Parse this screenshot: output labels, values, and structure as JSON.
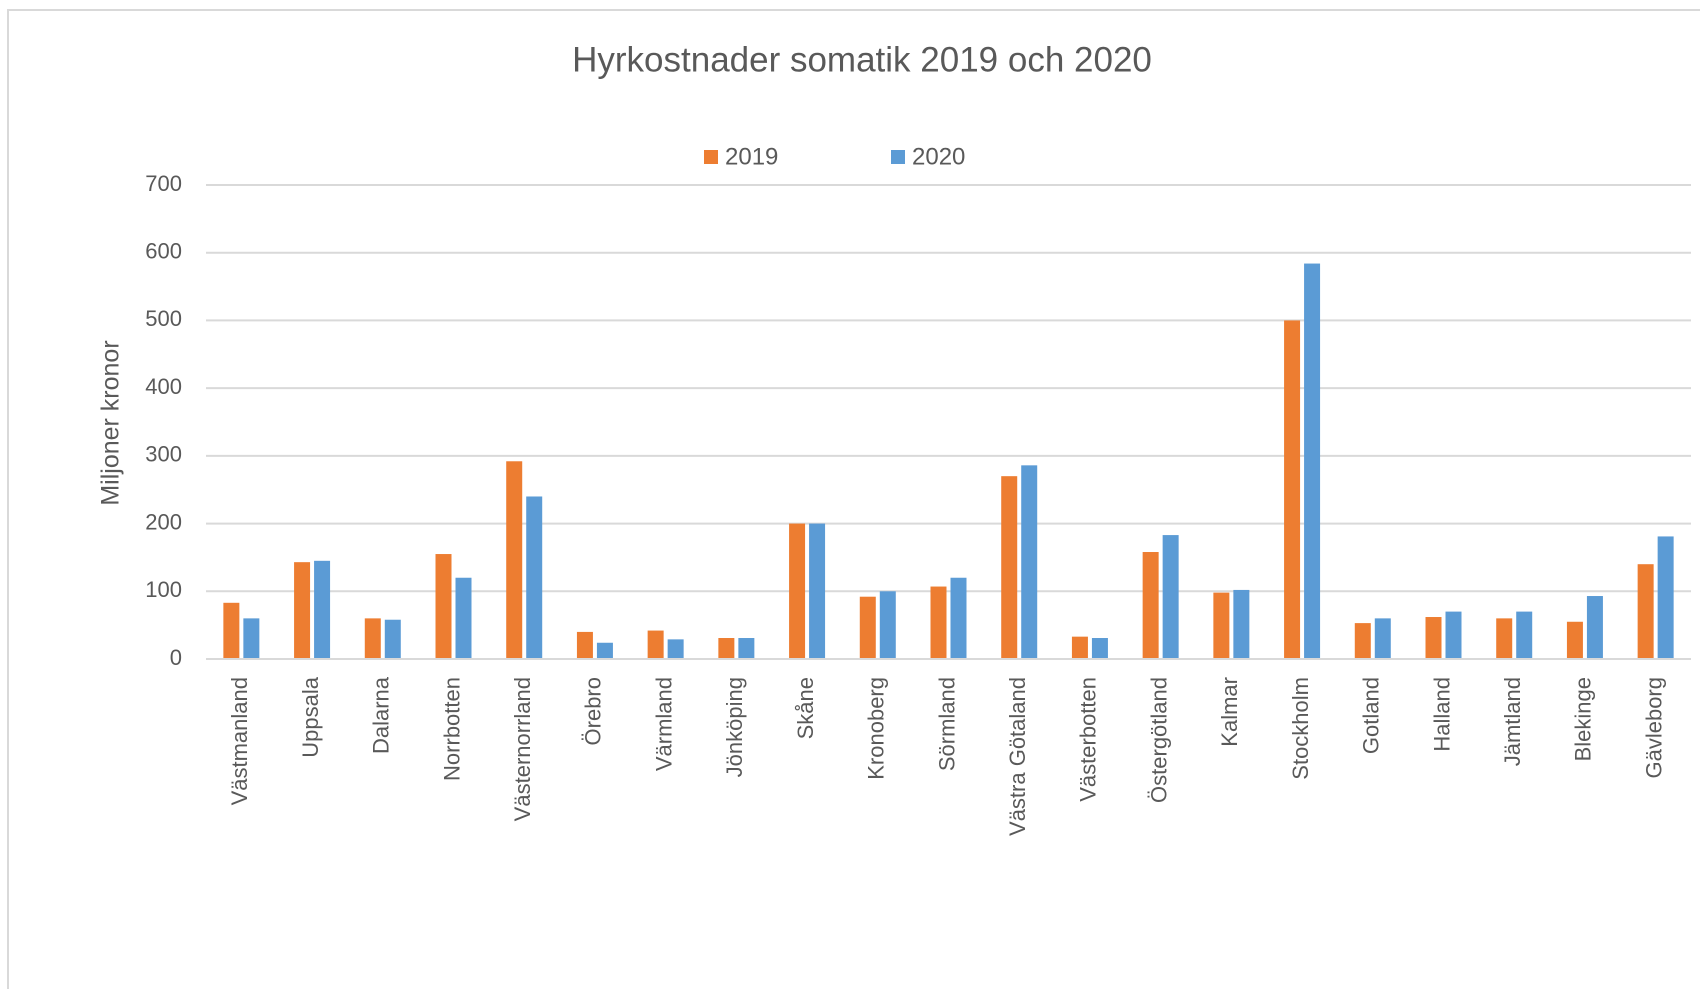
{
  "chart_data": {
    "type": "bar",
    "title": "Hyrkostnader somatik 2019 och 2020",
    "y_label": "Miljoner kronor",
    "categories": [
      "Västmanland",
      "Uppsala",
      "Dalarna",
      "Norrbotten",
      "Västernorrland",
      "Örebro",
      "Värmland",
      "Jönköping",
      "Skåne",
      "Kronoberg",
      "Sörmland",
      "Västra Götaland",
      "Västerbotten",
      "Östergötland",
      "Kalmar",
      "Stockholm",
      "Gotland",
      "Halland",
      "Jämtland",
      "Blekinge",
      "Gävleborg"
    ],
    "series": [
      {
        "name": "2019",
        "color": "#ed7d31",
        "values": [
          83,
          143,
          60,
          155,
          292,
          40,
          42,
          31,
          200,
          92,
          107,
          270,
          33,
          158,
          98,
          500,
          53,
          62,
          60,
          55,
          140
        ]
      },
      {
        "name": "2020",
        "color": "#5b9bd5",
        "values": [
          60,
          145,
          58,
          120,
          240,
          24,
          29,
          31,
          200,
          100,
          120,
          286,
          31,
          183,
          102,
          584,
          60,
          70,
          70,
          93,
          181
        ]
      }
    ],
    "ylim": [
      0,
      700
    ],
    "yticks": [
      0,
      100,
      200,
      300,
      400,
      500,
      600,
      700
    ],
    "grid": true,
    "legend": "top"
  }
}
